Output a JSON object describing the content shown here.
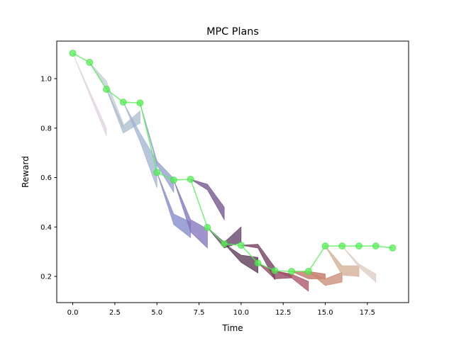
{
  "chart_data": {
    "type": "line",
    "title": "MPC Plans",
    "xlabel": "Time",
    "ylabel": "Reward",
    "xlim": [
      -0.95,
      19.95
    ],
    "ylim": [
      0.094,
      1.152
    ],
    "xticks": [
      0.0,
      2.5,
      5.0,
      7.5,
      10.0,
      12.5,
      15.0,
      17.5
    ],
    "xtick_labels": [
      "0.0",
      "2.5",
      "5.0",
      "7.5",
      "10.0",
      "12.5",
      "15.0",
      "17.5"
    ],
    "yticks": [
      0.2,
      0.4,
      0.6,
      0.8,
      1.0
    ],
    "ytick_labels": [
      "0.2",
      "0.4",
      "0.6",
      "0.8",
      "1.0"
    ],
    "grid": false,
    "series": [
      {
        "color": "#55ee55",
        "marker": "circle",
        "x": [
          0,
          1,
          2,
          3,
          4,
          5,
          6,
          7,
          8,
          9,
          10,
          11,
          12,
          13,
          14,
          15,
          16,
          17,
          18,
          19
        ],
        "y": [
          1.103,
          1.066,
          0.957,
          0.905,
          0.902,
          0.621,
          0.59,
          0.593,
          0.398,
          0.332,
          0.326,
          0.254,
          0.223,
          0.22,
          0.22,
          0.323,
          0.323,
          0.323,
          0.323,
          0.315
        ]
      }
    ],
    "plans": [
      {
        "start": 0,
        "color": "#ddd0dd",
        "lower": [
          1.103,
          0.935,
          0.768
        ],
        "upper": [
          1.103,
          0.95,
          0.8
        ]
      },
      {
        "start": 1,
        "color": "#c4ccd8",
        "lower": [
          1.066,
          0.955,
          0.8
        ],
        "upper": [
          1.066,
          0.99,
          0.82
        ]
      },
      {
        "start": 2,
        "color": "#a9bccc",
        "lower": [
          0.957,
          0.78,
          0.82
        ],
        "upper": [
          0.957,
          0.81,
          0.87
        ]
      },
      {
        "start": 3,
        "color": "#9fb2d2",
        "lower": [
          0.905,
          0.745,
          0.558
        ],
        "upper": [
          0.905,
          0.78,
          0.667
        ]
      },
      {
        "start": 4,
        "color": "#8e9ccc",
        "lower": [
          0.902,
          0.65,
          0.54
        ],
        "upper": [
          0.902,
          0.667,
          0.596
        ]
      },
      {
        "start": 5,
        "color": "#7f86c8",
        "lower": [
          0.621,
          0.41,
          0.357
        ],
        "upper": [
          0.621,
          0.452,
          0.42
        ]
      },
      {
        "start": 6,
        "color": "#8070bc",
        "lower": [
          0.59,
          0.38,
          0.315
        ],
        "upper": [
          0.59,
          0.43,
          0.392
        ]
      },
      {
        "start": 7,
        "color": "#6e4e88",
        "lower": [
          0.593,
          0.55,
          0.43
        ],
        "upper": [
          0.593,
          0.573,
          0.48
        ]
      },
      {
        "start": 8,
        "color": "#5c3c62",
        "lower": [
          0.398,
          0.315,
          0.338
        ],
        "upper": [
          0.398,
          0.338,
          0.4
        ]
      },
      {
        "start": 9,
        "color": "#56304f",
        "lower": [
          0.332,
          0.257,
          0.214
        ],
        "upper": [
          0.332,
          0.286,
          0.277
        ]
      },
      {
        "start": 10,
        "color": "#6e3558",
        "lower": [
          0.326,
          0.315,
          0.186
        ],
        "upper": [
          0.326,
          0.33,
          0.237
        ]
      },
      {
        "start": 11,
        "color": "#8c3e5e",
        "lower": [
          0.254,
          0.19,
          0.194
        ],
        "upper": [
          0.254,
          0.22,
          0.209
        ]
      },
      {
        "start": 12,
        "color": "#a84e60",
        "lower": [
          0.223,
          0.194,
          0.14
        ],
        "upper": [
          0.223,
          0.209,
          0.18
        ]
      },
      {
        "start": 13,
        "color": "#c06e5e",
        "lower": [
          0.22,
          0.19,
          0.19
        ],
        "upper": [
          0.22,
          0.22,
          0.21
        ]
      },
      {
        "start": 14,
        "color": "#c88a70",
        "lower": [
          0.22,
          0.163,
          0.177
        ],
        "upper": [
          0.22,
          0.19,
          0.217
        ]
      },
      {
        "start": 15,
        "color": "#d2ac92",
        "lower": [
          0.323,
          0.205,
          0.2
        ],
        "upper": [
          0.323,
          0.243,
          0.243
        ]
      },
      {
        "start": 16,
        "color": "#dccbc2",
        "lower": [
          0.323,
          0.237,
          0.177
        ],
        "upper": [
          0.323,
          0.25,
          0.21
        ]
      }
    ]
  }
}
